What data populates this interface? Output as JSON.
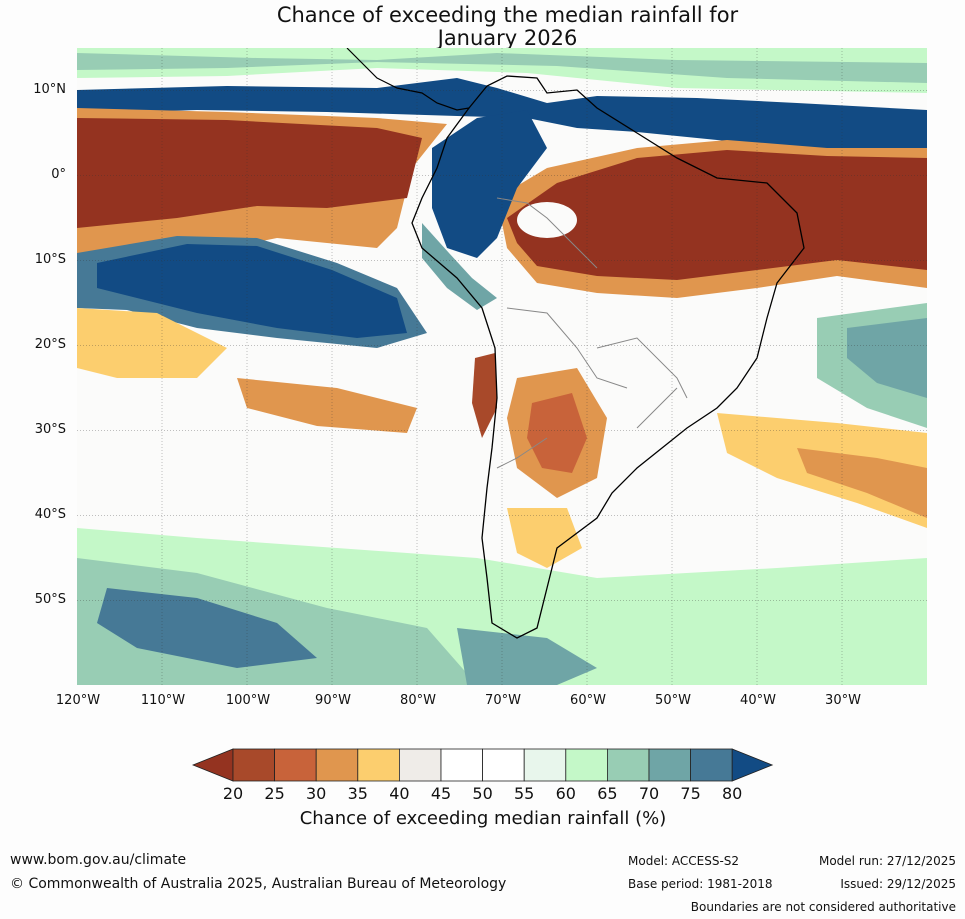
{
  "title": {
    "line1": "Chance of exceeding the median rainfall for",
    "line2": "January 2026"
  },
  "map": {
    "region": "South America and adjacent oceans",
    "lat_labels": [
      "10°N",
      "0°",
      "10°S",
      "20°S",
      "30°S",
      "40°S",
      "50°S"
    ],
    "lon_labels": [
      "120°W",
      "110°W",
      "100°W",
      "90°W",
      "80°W",
      "70°W",
      "60°W",
      "50°W",
      "40°W",
      "30°W"
    ]
  },
  "colorbar": {
    "ticks": [
      "20",
      "25",
      "30",
      "35",
      "40",
      "45",
      "50",
      "55",
      "60",
      "65",
      "70",
      "75",
      "80"
    ],
    "label": "Chance of exceeding median rainfall (%)",
    "colors": {
      "under": "#943320",
      "bins": [
        "#a8492a",
        "#c8633a",
        "#e0964e",
        "#fcce6e",
        "#efece8",
        "#ffffff",
        "#ffffff",
        "#e8f6ec",
        "#c4f8c8",
        "#98cdb4",
        "#6fa5a6",
        "#467996"
      ],
      "over": "#124b84"
    }
  },
  "footer": {
    "website": "www.bom.gov.au/climate",
    "copyright": "© Commonwealth of Australia 2025, Australian Bureau of Meteorology",
    "model": "Model: ACCESS-S2",
    "base_period": "Base period: 1981-2018",
    "model_run": "Model run: 27/12/2025",
    "issued": "Issued: 29/12/2025",
    "disclaimer": "Boundaries are not considered authoritative"
  }
}
